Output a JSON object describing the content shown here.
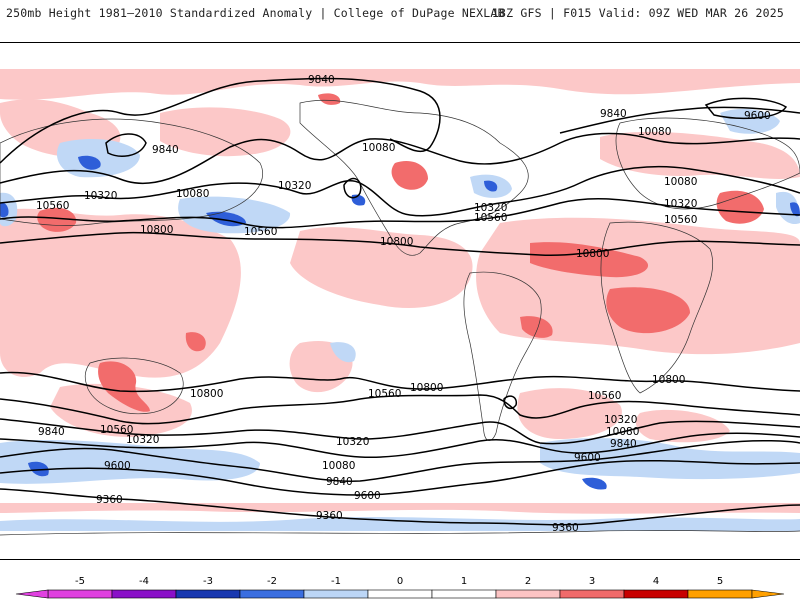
{
  "header": {
    "title": "250mb Height 1981–2010 Standardized Anomaly | College of DuPage NEXLAB",
    "run_info": "18Z GFS | F015 Valid: 09Z WED MAR 26 2025"
  },
  "map": {
    "contour_labels": [
      {
        "id": "c-9840-a",
        "text": "9840"
      },
      {
        "id": "c-9840-b",
        "text": "9840"
      },
      {
        "id": "c-9840-c",
        "text": "9840"
      },
      {
        "id": "c-9600-a",
        "text": "9600"
      },
      {
        "id": "c-10080-a",
        "text": "10080"
      },
      {
        "id": "c-10080-b",
        "text": "10080"
      },
      {
        "id": "c-10080-c",
        "text": "10080"
      },
      {
        "id": "c-10080-d",
        "text": "10080"
      },
      {
        "id": "c-10320-a",
        "text": "10320"
      },
      {
        "id": "c-10320-b",
        "text": "10320"
      },
      {
        "id": "c-10320-c",
        "text": "10320"
      },
      {
        "id": "c-10320-d",
        "text": "10320"
      },
      {
        "id": "c-10560-a",
        "text": "10560"
      },
      {
        "id": "c-10560-b",
        "text": "10560"
      },
      {
        "id": "c-10560-c",
        "text": "10560"
      },
      {
        "id": "c-10560-d",
        "text": "10560"
      },
      {
        "id": "c-10800-a",
        "text": "10800"
      },
      {
        "id": "c-10800-b",
        "text": "10800"
      },
      {
        "id": "c-10800-c",
        "text": "10800"
      },
      {
        "id": "c-10800-d",
        "text": "10800"
      },
      {
        "id": "c-10800-e",
        "text": "10800"
      },
      {
        "id": "c-10800-f",
        "text": "10800"
      },
      {
        "id": "c-10560-e",
        "text": "10560"
      },
      {
        "id": "c-10560-f",
        "text": "10560"
      },
      {
        "id": "c-10560-g",
        "text": "10560"
      },
      {
        "id": "c-10320-e",
        "text": "10320"
      },
      {
        "id": "c-10320-f",
        "text": "10320"
      },
      {
        "id": "c-10320-g",
        "text": "10320"
      },
      {
        "id": "c-10080-e",
        "text": "10080"
      },
      {
        "id": "c-10080-f",
        "text": "10080"
      },
      {
        "id": "c-9840-d",
        "text": "9840"
      },
      {
        "id": "c-9840-e",
        "text": "9840"
      },
      {
        "id": "c-9840-f",
        "text": "9840"
      },
      {
        "id": "c-9600-b",
        "text": "9600"
      },
      {
        "id": "c-9600-c",
        "text": "9600"
      },
      {
        "id": "c-9600-d",
        "text": "9600"
      },
      {
        "id": "c-9360-a",
        "text": "9360"
      },
      {
        "id": "c-9360-b",
        "text": "9360"
      },
      {
        "id": "c-9360-c",
        "text": "9360"
      }
    ]
  },
  "colorbar": {
    "ticks": [
      "-5",
      "-4",
      "-3",
      "-2",
      "-1",
      "0",
      "1",
      "2",
      "3",
      "4",
      "5"
    ],
    "colors": [
      "#e040e0",
      "#8a10c8",
      "#1838b0",
      "#3a6ee0",
      "#bcd6f6",
      "#ffffff",
      "#ffffff",
      "#fcc4c4",
      "#f06a6a",
      "#c80000",
      "#ffa000"
    ]
  }
}
